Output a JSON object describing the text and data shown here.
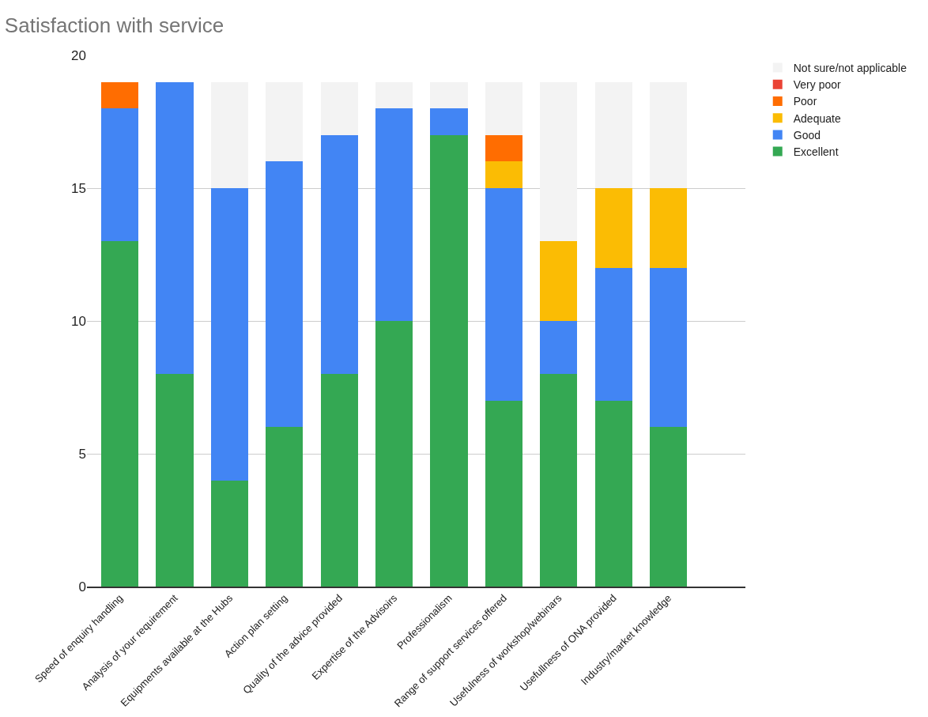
{
  "chart_data": {
    "type": "bar",
    "title": "Satisfaction with service",
    "stacked": true,
    "categories": [
      "Speed of enquiry handling",
      "Analysis of your requirement",
      "Equipments available at the Hubs",
      "Action plan setting",
      "Quality of the advice provided",
      "Expertise of the Advisoirs",
      "Professionalism",
      "Range of support services offered",
      "Usefulness of workshop/webinars",
      "Usefullness of ONA provided",
      "Industry/market knowledge"
    ],
    "series": [
      {
        "name": "Excellent",
        "color": "#34a853",
        "values": [
          13,
          8,
          4,
          6,
          8,
          10,
          17,
          7,
          8,
          7,
          6
        ]
      },
      {
        "name": "Good",
        "color": "#4285f4",
        "values": [
          5,
          11,
          11,
          10,
          9,
          8,
          1,
          8,
          2,
          5,
          6
        ]
      },
      {
        "name": "Adequate",
        "color": "#fbbc04",
        "values": [
          0,
          0,
          0,
          0,
          0,
          0,
          0,
          1,
          3,
          3,
          3
        ]
      },
      {
        "name": "Poor",
        "color": "#ff6d01",
        "values": [
          1,
          0,
          0,
          0,
          0,
          0,
          0,
          1,
          0,
          0,
          0
        ]
      },
      {
        "name": "Very poor",
        "color": "#ea4335",
        "values": [
          0,
          0,
          0,
          0,
          0,
          0,
          0,
          0,
          0,
          0,
          0
        ]
      },
      {
        "name": "Not sure/not applicable",
        "color": "#f3f3f3",
        "values": [
          0,
          0,
          4,
          3,
          2,
          1,
          1,
          2,
          6,
          4,
          4
        ]
      }
    ],
    "ylim": [
      0,
      20
    ],
    "yticks": [
      0,
      5,
      10,
      15,
      20
    ],
    "grid": "y",
    "legend": "top right"
  }
}
